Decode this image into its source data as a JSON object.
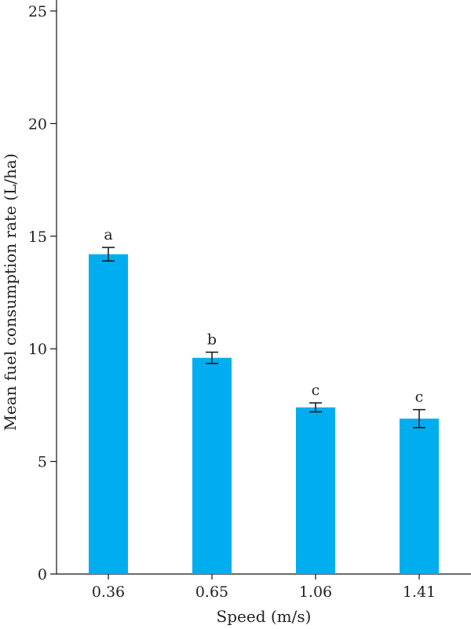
{
  "chart_data": {
    "type": "bar",
    "title": "",
    "xlabel": "Speed (m/s)",
    "ylabel": "Mean fuel consumption rate (L/ha)",
    "categories": [
      "0.36",
      "0.65",
      "1.06",
      "1.41"
    ],
    "values": [
      14.2,
      9.6,
      7.4,
      6.9
    ],
    "error": [
      0.3,
      0.25,
      0.2,
      0.4
    ],
    "significance": [
      "a",
      "b",
      "c",
      "c"
    ],
    "ylim": [
      0,
      25
    ],
    "yticks": [
      0,
      5,
      10,
      15,
      20,
      25
    ],
    "grid": false,
    "bar_color": "#00AEEF"
  }
}
